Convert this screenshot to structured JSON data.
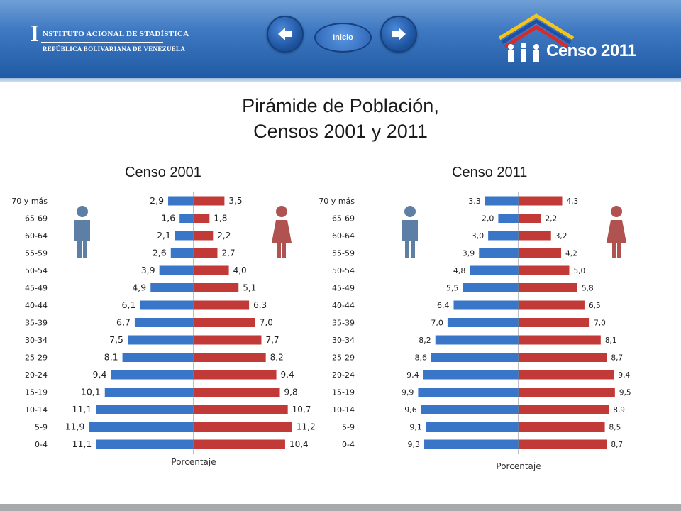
{
  "header": {
    "logo": {
      "line1": "NSTITUTO  ACIONAL DE  STADÍSTICA",
      "line2": "REPÚBLICA BOLIVARIANA DE VENEZUELA"
    },
    "nav": {
      "prev_icon": "arrow-left-icon",
      "inicio_label": "Inicio",
      "next_icon": "arrow-right-icon"
    },
    "censo_logo_text": "Censo 2011"
  },
  "slide": {
    "title_line1": "Pirámide de Población,",
    "title_line2": "Censos 2001 y 2011"
  },
  "colors": {
    "male": "#3a76c8",
    "female": "#c23a38",
    "icon_male": "#5d7fa6",
    "icon_female": "#b0524f"
  },
  "chart_data": [
    {
      "type": "bar",
      "subtitle": "Censo 2001",
      "xlabel": "Porcentaje",
      "categories": [
        "70 y más",
        "65-69",
        "60-64",
        "55-59",
        "50-54",
        "45-49",
        "40-44",
        "35-39",
        "30-34",
        "25-29",
        "20-24",
        "15-19",
        "10-14",
        "5-9",
        "0-4"
      ],
      "series": [
        {
          "values": [
            2.9,
            1.6,
            2.1,
            2.6,
            3.9,
            4.9,
            6.1,
            6.7,
            7.5,
            8.1,
            9.4,
            10.1,
            11.1,
            11.9,
            11.1
          ],
          "labels": [
            "2,9",
            "1,6",
            "2,1",
            "2,6",
            "3,9",
            "4,9",
            "6,1",
            "6,7",
            "7,5",
            "8,1",
            "9,4",
            "10,1",
            "11,1",
            "11,9",
            "11,1"
          ]
        },
        {
          "values": [
            3.5,
            1.8,
            2.2,
            2.7,
            4.0,
            5.1,
            6.3,
            7.0,
            7.7,
            8.2,
            9.4,
            9.8,
            10.7,
            11.2,
            10.4
          ],
          "labels": [
            "3,5",
            "1,8",
            "2,2",
            "2,7",
            "4,0",
            "5,1",
            "6,3",
            "7,0",
            "7,7",
            "8,2",
            "9,4",
            "9,8",
            "10,7",
            "11,2",
            "10,4"
          ]
        }
      ]
    },
    {
      "type": "bar",
      "subtitle": "Censo 2011",
      "xlabel": "Porcentaje",
      "categories": [
        "70 y más",
        "65-69",
        "60-64",
        "55-59",
        "50-54",
        "45-49",
        "40-44",
        "35-39",
        "30-34",
        "25-29",
        "20-24",
        "15-19",
        "10-14",
        "5-9",
        "0-4"
      ],
      "series": [
        {
          "values": [
            3.3,
            2.0,
            3.0,
            3.9,
            4.8,
            5.5,
            6.4,
            7.0,
            8.2,
            8.6,
            9.4,
            9.9,
            9.6,
            9.1,
            9.3
          ],
          "labels": [
            "3,3",
            "2,0",
            "3,0",
            "3,9",
            "4,8",
            "5,5",
            "6,4",
            "7,0",
            "8,2",
            "8,6",
            "9,4",
            "9,9",
            "9,6",
            "9,1",
            "9,3"
          ]
        },
        {
          "values": [
            4.3,
            2.2,
            3.2,
            4.2,
            5.0,
            5.8,
            6.5,
            7.0,
            8.1,
            8.7,
            9.4,
            9.5,
            8.9,
            8.5,
            8.7
          ],
          "labels": [
            "4,3",
            "2,2",
            "3,2",
            "4,2",
            "5,0",
            "5,8",
            "6,5",
            "7,0",
            "8,1",
            "8,7",
            "9,4",
            "9,5",
            "8,9",
            "8,5",
            "8,7"
          ]
        }
      ]
    }
  ]
}
